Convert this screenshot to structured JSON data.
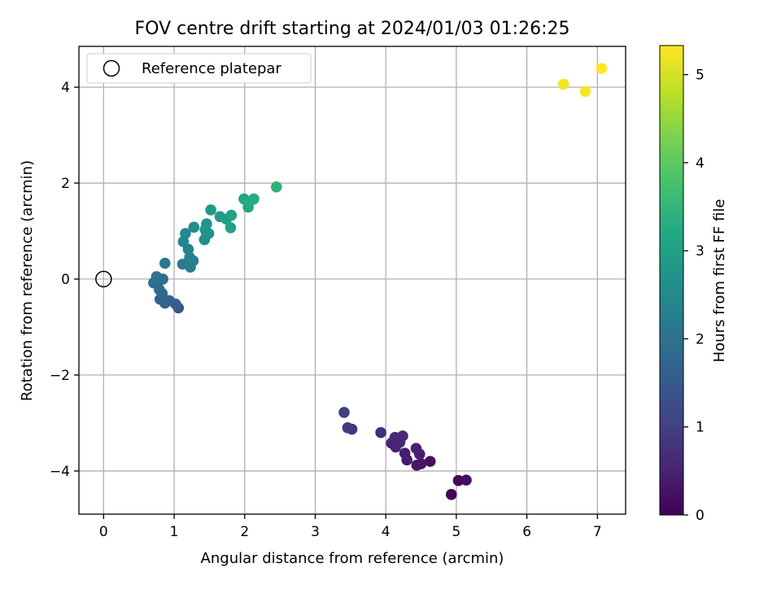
{
  "chart_data": {
    "type": "scatter",
    "title": "FOV centre drift starting at 2024/01/03 01:26:25",
    "xlabel": "Angular distance from reference (arcmin)",
    "ylabel": "Rotation from reference (arcmin)",
    "xlim": [
      -0.35,
      7.4
    ],
    "ylim": [
      -4.9,
      4.85
    ],
    "xticks": [
      0,
      1,
      2,
      3,
      4,
      5,
      6,
      7
    ],
    "xtick_labels": [
      "0",
      "1",
      "2",
      "3",
      "4",
      "5",
      "6",
      "7"
    ],
    "yticks": [
      -4,
      -2,
      0,
      2,
      4
    ],
    "ytick_labels": [
      "−4",
      "−2",
      "0",
      "2",
      "4"
    ],
    "grid": true,
    "legend": {
      "position": "top-left",
      "entries": [
        {
          "label": "Reference platepar",
          "marker": "open-circle"
        }
      ]
    },
    "reference_point": {
      "x": 0,
      "y": 0
    },
    "colorbar": {
      "label": "Hours from first FF file",
      "colormap": "viridis",
      "range": [
        0,
        5.33
      ],
      "ticks": [
        0,
        1,
        2,
        3,
        4,
        5
      ],
      "tick_labels": [
        "0",
        "1",
        "2",
        "3",
        "4",
        "5"
      ]
    },
    "points": [
      {
        "x": 4.93,
        "y": -4.49,
        "c": 0.05
      },
      {
        "x": 5.03,
        "y": -4.2,
        "c": 0.12
      },
      {
        "x": 5.14,
        "y": -4.19,
        "c": 0.15
      },
      {
        "x": 4.63,
        "y": -3.8,
        "c": 0.25
      },
      {
        "x": 4.5,
        "y": -3.85,
        "c": 0.3
      },
      {
        "x": 4.44,
        "y": -3.88,
        "c": 0.33
      },
      {
        "x": 4.3,
        "y": -3.77,
        "c": 0.38
      },
      {
        "x": 4.27,
        "y": -3.63,
        "c": 0.42
      },
      {
        "x": 4.48,
        "y": -3.65,
        "c": 0.44
      },
      {
        "x": 4.43,
        "y": -3.53,
        "c": 0.47
      },
      {
        "x": 4.14,
        "y": -3.5,
        "c": 0.5
      },
      {
        "x": 4.08,
        "y": -3.42,
        "c": 0.53
      },
      {
        "x": 4.2,
        "y": -3.4,
        "c": 0.56
      },
      {
        "x": 4.13,
        "y": -3.3,
        "c": 0.6
      },
      {
        "x": 4.24,
        "y": -3.27,
        "c": 0.63
      },
      {
        "x": 3.93,
        "y": -3.2,
        "c": 0.7
      },
      {
        "x": 3.52,
        "y": -3.13,
        "c": 0.85
      },
      {
        "x": 3.46,
        "y": -3.1,
        "c": 0.9
      },
      {
        "x": 3.41,
        "y": -2.78,
        "c": 1.0
      },
      {
        "x": 1.06,
        "y": -0.6,
        "c": 1.45
      },
      {
        "x": 1.02,
        "y": -0.52,
        "c": 1.55
      },
      {
        "x": 0.93,
        "y": -0.45,
        "c": 1.6
      },
      {
        "x": 0.87,
        "y": -0.5,
        "c": 1.65
      },
      {
        "x": 0.8,
        "y": -0.42,
        "c": 1.7
      },
      {
        "x": 0.83,
        "y": -0.3,
        "c": 1.78
      },
      {
        "x": 0.79,
        "y": -0.22,
        "c": 1.82
      },
      {
        "x": 0.71,
        "y": -0.08,
        "c": 1.9
      },
      {
        "x": 0.78,
        "y": -0.05,
        "c": 1.93
      },
      {
        "x": 0.84,
        "y": 0.0,
        "c": 1.97
      },
      {
        "x": 0.75,
        "y": 0.05,
        "c": 2.0
      },
      {
        "x": 0.87,
        "y": 0.33,
        "c": 2.12
      },
      {
        "x": 1.12,
        "y": 0.31,
        "c": 2.18
      },
      {
        "x": 1.23,
        "y": 0.25,
        "c": 2.22
      },
      {
        "x": 1.27,
        "y": 0.38,
        "c": 2.25
      },
      {
        "x": 1.22,
        "y": 0.45,
        "c": 2.3
      },
      {
        "x": 1.2,
        "y": 0.62,
        "c": 2.35
      },
      {
        "x": 1.13,
        "y": 0.78,
        "c": 2.4
      },
      {
        "x": 1.16,
        "y": 0.95,
        "c": 2.45
      },
      {
        "x": 1.28,
        "y": 1.08,
        "c": 2.55
      },
      {
        "x": 1.43,
        "y": 0.82,
        "c": 2.6
      },
      {
        "x": 1.46,
        "y": 0.93,
        "c": 2.63
      },
      {
        "x": 1.49,
        "y": 0.95,
        "c": 2.66
      },
      {
        "x": 1.44,
        "y": 1.03,
        "c": 2.7
      },
      {
        "x": 1.46,
        "y": 1.15,
        "c": 2.75
      },
      {
        "x": 1.52,
        "y": 1.44,
        "c": 2.85
      },
      {
        "x": 1.65,
        "y": 1.3,
        "c": 2.92
      },
      {
        "x": 1.74,
        "y": 1.25,
        "c": 2.97
      },
      {
        "x": 1.8,
        "y": 1.07,
        "c": 3.0
      },
      {
        "x": 1.81,
        "y": 1.33,
        "c": 3.05
      },
      {
        "x": 1.99,
        "y": 1.67,
        "c": 3.15
      },
      {
        "x": 2.05,
        "y": 1.5,
        "c": 3.2
      },
      {
        "x": 2.07,
        "y": 1.62,
        "c": 3.24
      },
      {
        "x": 2.13,
        "y": 1.67,
        "c": 3.28
      },
      {
        "x": 2.45,
        "y": 1.92,
        "c": 3.4
      },
      {
        "x": 6.52,
        "y": 4.06,
        "c": 5.25
      },
      {
        "x": 6.83,
        "y": 3.91,
        "c": 5.28
      },
      {
        "x": 7.06,
        "y": 4.39,
        "c": 5.33
      }
    ]
  }
}
